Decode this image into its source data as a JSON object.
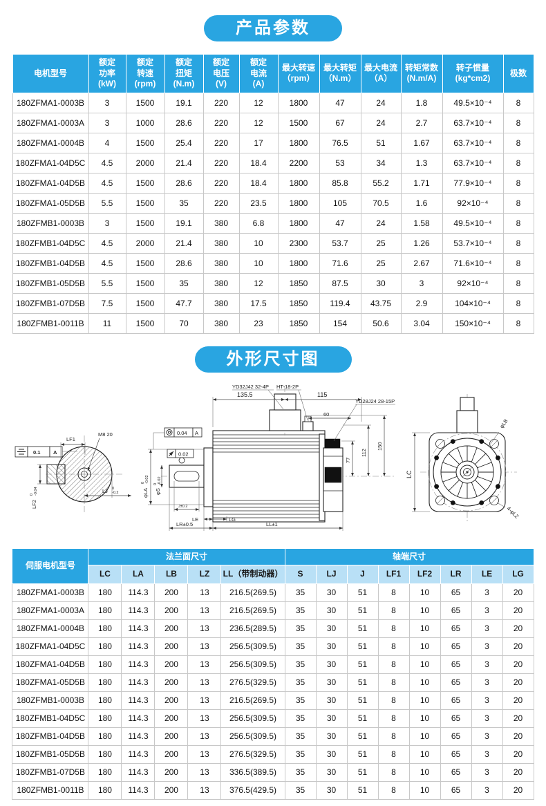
{
  "colors": {
    "primary_blue": "#29a5e1",
    "light_blue": "#b9e0f6",
    "border_gray": "#c8c8c8"
  },
  "section1": {
    "title": "产品参数"
  },
  "params_table": {
    "headers": [
      "电机型号",
      "额定\n功率\n(kW)",
      "额定\n转速\n(rpm)",
      "额定\n扭矩\n(N.m)",
      "额定\n电压\n(V)",
      "额定\n电流\n(A)",
      "最大转速\n（rpm）",
      "最大转矩\n（N.m）",
      "最大电流\n（A）",
      "转矩常数\n(N.m/A)",
      "转子惯量\n(kg*cm2)",
      "极数"
    ],
    "rows": [
      [
        "180ZFMA1-0003B",
        "3",
        "1500",
        "19.1",
        "220",
        "12",
        "1800",
        "47",
        "24",
        "1.8",
        "49.5×10⁻⁴",
        "8"
      ],
      [
        "180ZFMA1-0003A",
        "3",
        "1000",
        "28.6",
        "220",
        "12",
        "1500",
        "67",
        "24",
        "2.7",
        "63.7×10⁻⁴",
        "8"
      ],
      [
        "180ZFMA1-0004B",
        "4",
        "1500",
        "25.4",
        "220",
        "17",
        "1800",
        "76.5",
        "51",
        "1.67",
        "63.7×10⁻⁴",
        "8"
      ],
      [
        "180ZFMA1-04D5C",
        "4.5",
        "2000",
        "21.4",
        "220",
        "18.4",
        "2200",
        "53",
        "34",
        "1.3",
        "63.7×10⁻⁴",
        "8"
      ],
      [
        "180ZFMA1-04D5B",
        "4.5",
        "1500",
        "28.6",
        "220",
        "18.4",
        "1800",
        "85.8",
        "55.2",
        "1.71",
        "77.9×10⁻⁴",
        "8"
      ],
      [
        "180ZFMA1-05D5B",
        "5.5",
        "1500",
        "35",
        "220",
        "23.5",
        "1800",
        "105",
        "70.5",
        "1.6",
        "92×10⁻⁴",
        "8"
      ],
      [
        "180ZFMB1-0003B",
        "3",
        "1500",
        "19.1",
        "380",
        "6.8",
        "1800",
        "47",
        "24",
        "1.58",
        "49.5×10⁻⁴",
        "8"
      ],
      [
        "180ZFMB1-04D5C",
        "4.5",
        "2000",
        "21.4",
        "380",
        "10",
        "2300",
        "53.7",
        "25",
        "1.26",
        "53.7×10⁻⁴",
        "8"
      ],
      [
        "180ZFMB1-04D5B",
        "4.5",
        "1500",
        "28.6",
        "380",
        "10",
        "1800",
        "71.6",
        "25",
        "2.67",
        "71.6×10⁻⁴",
        "8"
      ],
      [
        "180ZFMB1-05D5B",
        "5.5",
        "1500",
        "35",
        "380",
        "12",
        "1850",
        "87.5",
        "30",
        "3",
        "92×10⁻⁴",
        "8"
      ],
      [
        "180ZFMB1-07D5B",
        "7.5",
        "1500",
        "47.7",
        "380",
        "17.5",
        "1850",
        "119.4",
        "43.75",
        "2.9",
        "104×10⁻⁴",
        "8"
      ],
      [
        "180ZFMB1-0011B",
        "11",
        "1500",
        "70",
        "380",
        "23",
        "1850",
        "154",
        "50.6",
        "3.04",
        "150×10⁻⁴",
        "8"
      ]
    ]
  },
  "section2": {
    "title": "外形尺寸图"
  },
  "drawing": {
    "left": {
      "datum_tol": "0.1",
      "datum_ref": "A",
      "lf1": "LF1",
      "m8": "M8 20",
      "lf2": "LF2",
      "lf2_hi": "0",
      "lf2_lo": "-0.04",
      "lj": "LJ",
      "lj_hi": "0",
      "lj_lo": "-0.2"
    },
    "side": {
      "conn_main": "YD32J42 32-4P",
      "conn_brake": "HT-18-2P",
      "conn_enc": "YD28J24 28-15P",
      "dim_1355": "135.5",
      "dim_115": "115",
      "dim_60": "60",
      "dim_150": "150",
      "dim_112": "112",
      "dim_77": "77",
      "runout_tol": "0.04",
      "runout_ref": "A",
      "circ_tol": "0.02",
      "phi_la": "φLA",
      "phi_la_hi": "0",
      "phi_la_lo": "-0.02",
      "phi_s": "φS",
      "phi_s_hi": "0",
      "phi_s_lo": "-0.02",
      "dim_j": "J±0.2",
      "le": "LE",
      "lg": "LG",
      "lr": "LR±0.5",
      "ll": "LL±1"
    },
    "end": {
      "lc": "LC",
      "phi_lb": "φLB",
      "lz": "4-φLZ"
    }
  },
  "dims_table": {
    "model_header": "伺服电机型号",
    "group1": "法兰面尺寸",
    "group2": "轴端尺寸",
    "sub_headers": [
      "LC",
      "LA",
      "LB",
      "LZ",
      "LL（带制动器）",
      "S",
      "LJ",
      "J",
      "LF1",
      "LF2",
      "LR",
      "LE",
      "LG"
    ],
    "rows": [
      [
        "180ZFMA1-0003B",
        "180",
        "114.3",
        "200",
        "13",
        "216.5(269.5)",
        "35",
        "30",
        "51",
        "8",
        "10",
        "65",
        "3",
        "20"
      ],
      [
        "180ZFMA1-0003A",
        "180",
        "114.3",
        "200",
        "13",
        "216.5(269.5)",
        "35",
        "30",
        "51",
        "8",
        "10",
        "65",
        "3",
        "20"
      ],
      [
        "180ZFMA1-0004B",
        "180",
        "114.3",
        "200",
        "13",
        "236.5(289.5)",
        "35",
        "30",
        "51",
        "8",
        "10",
        "65",
        "3",
        "20"
      ],
      [
        "180ZFMA1-04D5C",
        "180",
        "114.3",
        "200",
        "13",
        "256.5(309.5)",
        "35",
        "30",
        "51",
        "8",
        "10",
        "65",
        "3",
        "20"
      ],
      [
        "180ZFMA1-04D5B",
        "180",
        "114.3",
        "200",
        "13",
        "256.5(309.5)",
        "35",
        "30",
        "51",
        "8",
        "10",
        "65",
        "3",
        "20"
      ],
      [
        "180ZFMA1-05D5B",
        "180",
        "114.3",
        "200",
        "13",
        "276.5(329.5)",
        "35",
        "30",
        "51",
        "8",
        "10",
        "65",
        "3",
        "20"
      ],
      [
        "180ZFMB1-0003B",
        "180",
        "114.3",
        "200",
        "13",
        "216.5(269.5)",
        "35",
        "30",
        "51",
        "8",
        "10",
        "65",
        "3",
        "20"
      ],
      [
        "180ZFMB1-04D5C",
        "180",
        "114.3",
        "200",
        "13",
        "256.5(309.5)",
        "35",
        "30",
        "51",
        "8",
        "10",
        "65",
        "3",
        "20"
      ],
      [
        "180ZFMB1-04D5B",
        "180",
        "114.3",
        "200",
        "13",
        "256.5(309.5)",
        "35",
        "30",
        "51",
        "8",
        "10",
        "65",
        "3",
        "20"
      ],
      [
        "180ZFMB1-05D5B",
        "180",
        "114.3",
        "200",
        "13",
        "276.5(329.5)",
        "35",
        "30",
        "51",
        "8",
        "10",
        "65",
        "3",
        "20"
      ],
      [
        "180ZFMB1-07D5B",
        "180",
        "114.3",
        "200",
        "13",
        "336.5(389.5)",
        "35",
        "30",
        "51",
        "8",
        "10",
        "65",
        "3",
        "20"
      ],
      [
        "180ZFMB1-0011B",
        "180",
        "114.3",
        "200",
        "13",
        "376.5(429.5)",
        "35",
        "30",
        "51",
        "8",
        "10",
        "65",
        "3",
        "20"
      ]
    ]
  }
}
